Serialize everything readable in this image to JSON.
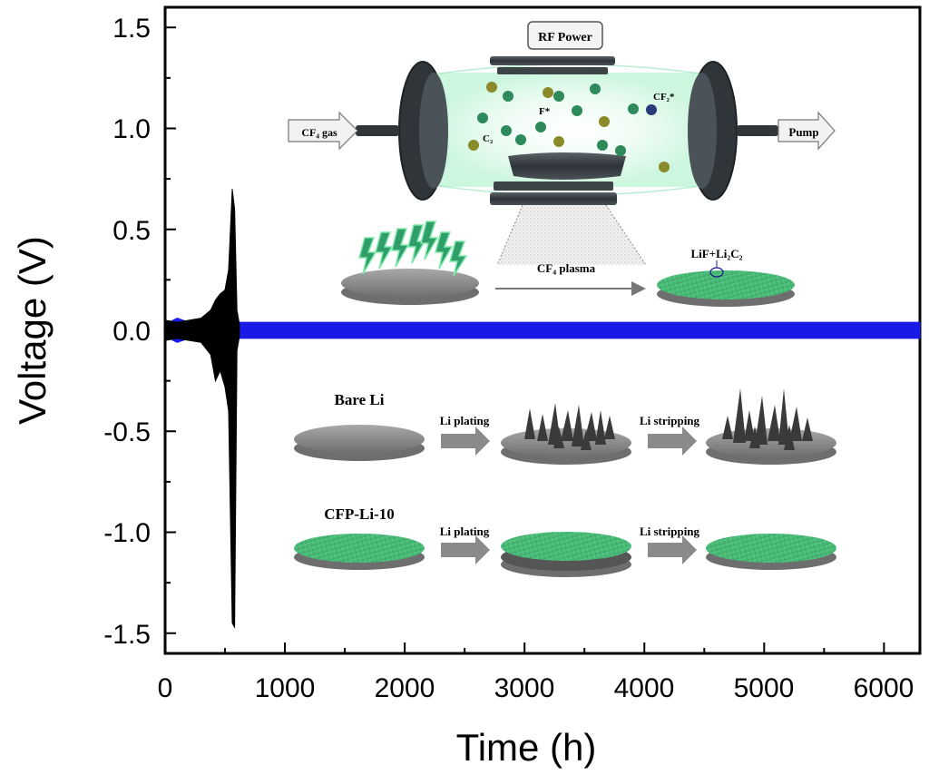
{
  "chart_data": {
    "type": "line",
    "xlabel": "Time (h)",
    "ylabel": "Voltage (V)",
    "xlim": [
      0,
      6300
    ],
    "ylim": [
      -1.6,
      1.6
    ],
    "xticks": [
      0,
      1000,
      2000,
      3000,
      4000,
      5000,
      6000
    ],
    "xtick_labels": [
      "0",
      "1000",
      "2000",
      "3000",
      "4000",
      "5000",
      "6000"
    ],
    "yticks": [
      1.5,
      1.0,
      0.5,
      0.0,
      -0.5,
      -1.0,
      -1.5
    ],
    "ytick_labels": [
      "1.5",
      "1.0",
      "0.5",
      "0.0",
      "-0.5",
      "-1.0",
      "-1.5"
    ],
    "grid": false,
    "series": [
      {
        "color": "#000000",
        "x": [
          0,
          100,
          200,
          300,
          380,
          420,
          460,
          500,
          530,
          560,
          580,
          600,
          620
        ],
        "y_max": [
          0.05,
          0.04,
          0.05,
          0.06,
          0.1,
          0.15,
          0.18,
          0.2,
          0.3,
          0.7,
          0.6,
          0.1,
          0.03
        ],
        "y_min": [
          -0.05,
          -0.04,
          -0.05,
          -0.06,
          -0.12,
          -0.25,
          -0.2,
          -0.28,
          -0.4,
          -1.45,
          -1.47,
          -0.1,
          -0.03
        ]
      },
      {
        "color": "#1a1ae6",
        "x": [
          0,
          100,
          200,
          300,
          600,
          1000,
          2000,
          3000,
          4000,
          5000,
          6000,
          6300
        ],
        "y_max": [
          0.03,
          0.06,
          0.04,
          0.04,
          0.04,
          0.04,
          0.04,
          0.04,
          0.04,
          0.04,
          0.04,
          0.04
        ],
        "y_min": [
          -0.03,
          -0.06,
          -0.04,
          -0.04,
          -0.04,
          -0.04,
          -0.04,
          -0.04,
          -0.04,
          -0.04,
          -0.04,
          -0.04
        ]
      }
    ]
  },
  "inset": {
    "rf_power": "RF Power",
    "cf4_gas": "CF₄ gas",
    "pump": "Pump",
    "species": {
      "f": "F*",
      "c2": "C₂",
      "cf2": "CF₂*"
    },
    "cf4_plasma": "CF₄ plasma",
    "product": "LiF+Li₂C₂",
    "bare_li": "Bare Li",
    "cfp_li": "CFP-Li-10",
    "li_plating": "Li plating",
    "li_stripping": "Li stripping",
    "colors": {
      "treated_surface": "#4cc27a",
      "bare_surface": "#8a8a8a",
      "plasma_glow": "#7de8a8",
      "chamber": "#3d4448"
    }
  }
}
